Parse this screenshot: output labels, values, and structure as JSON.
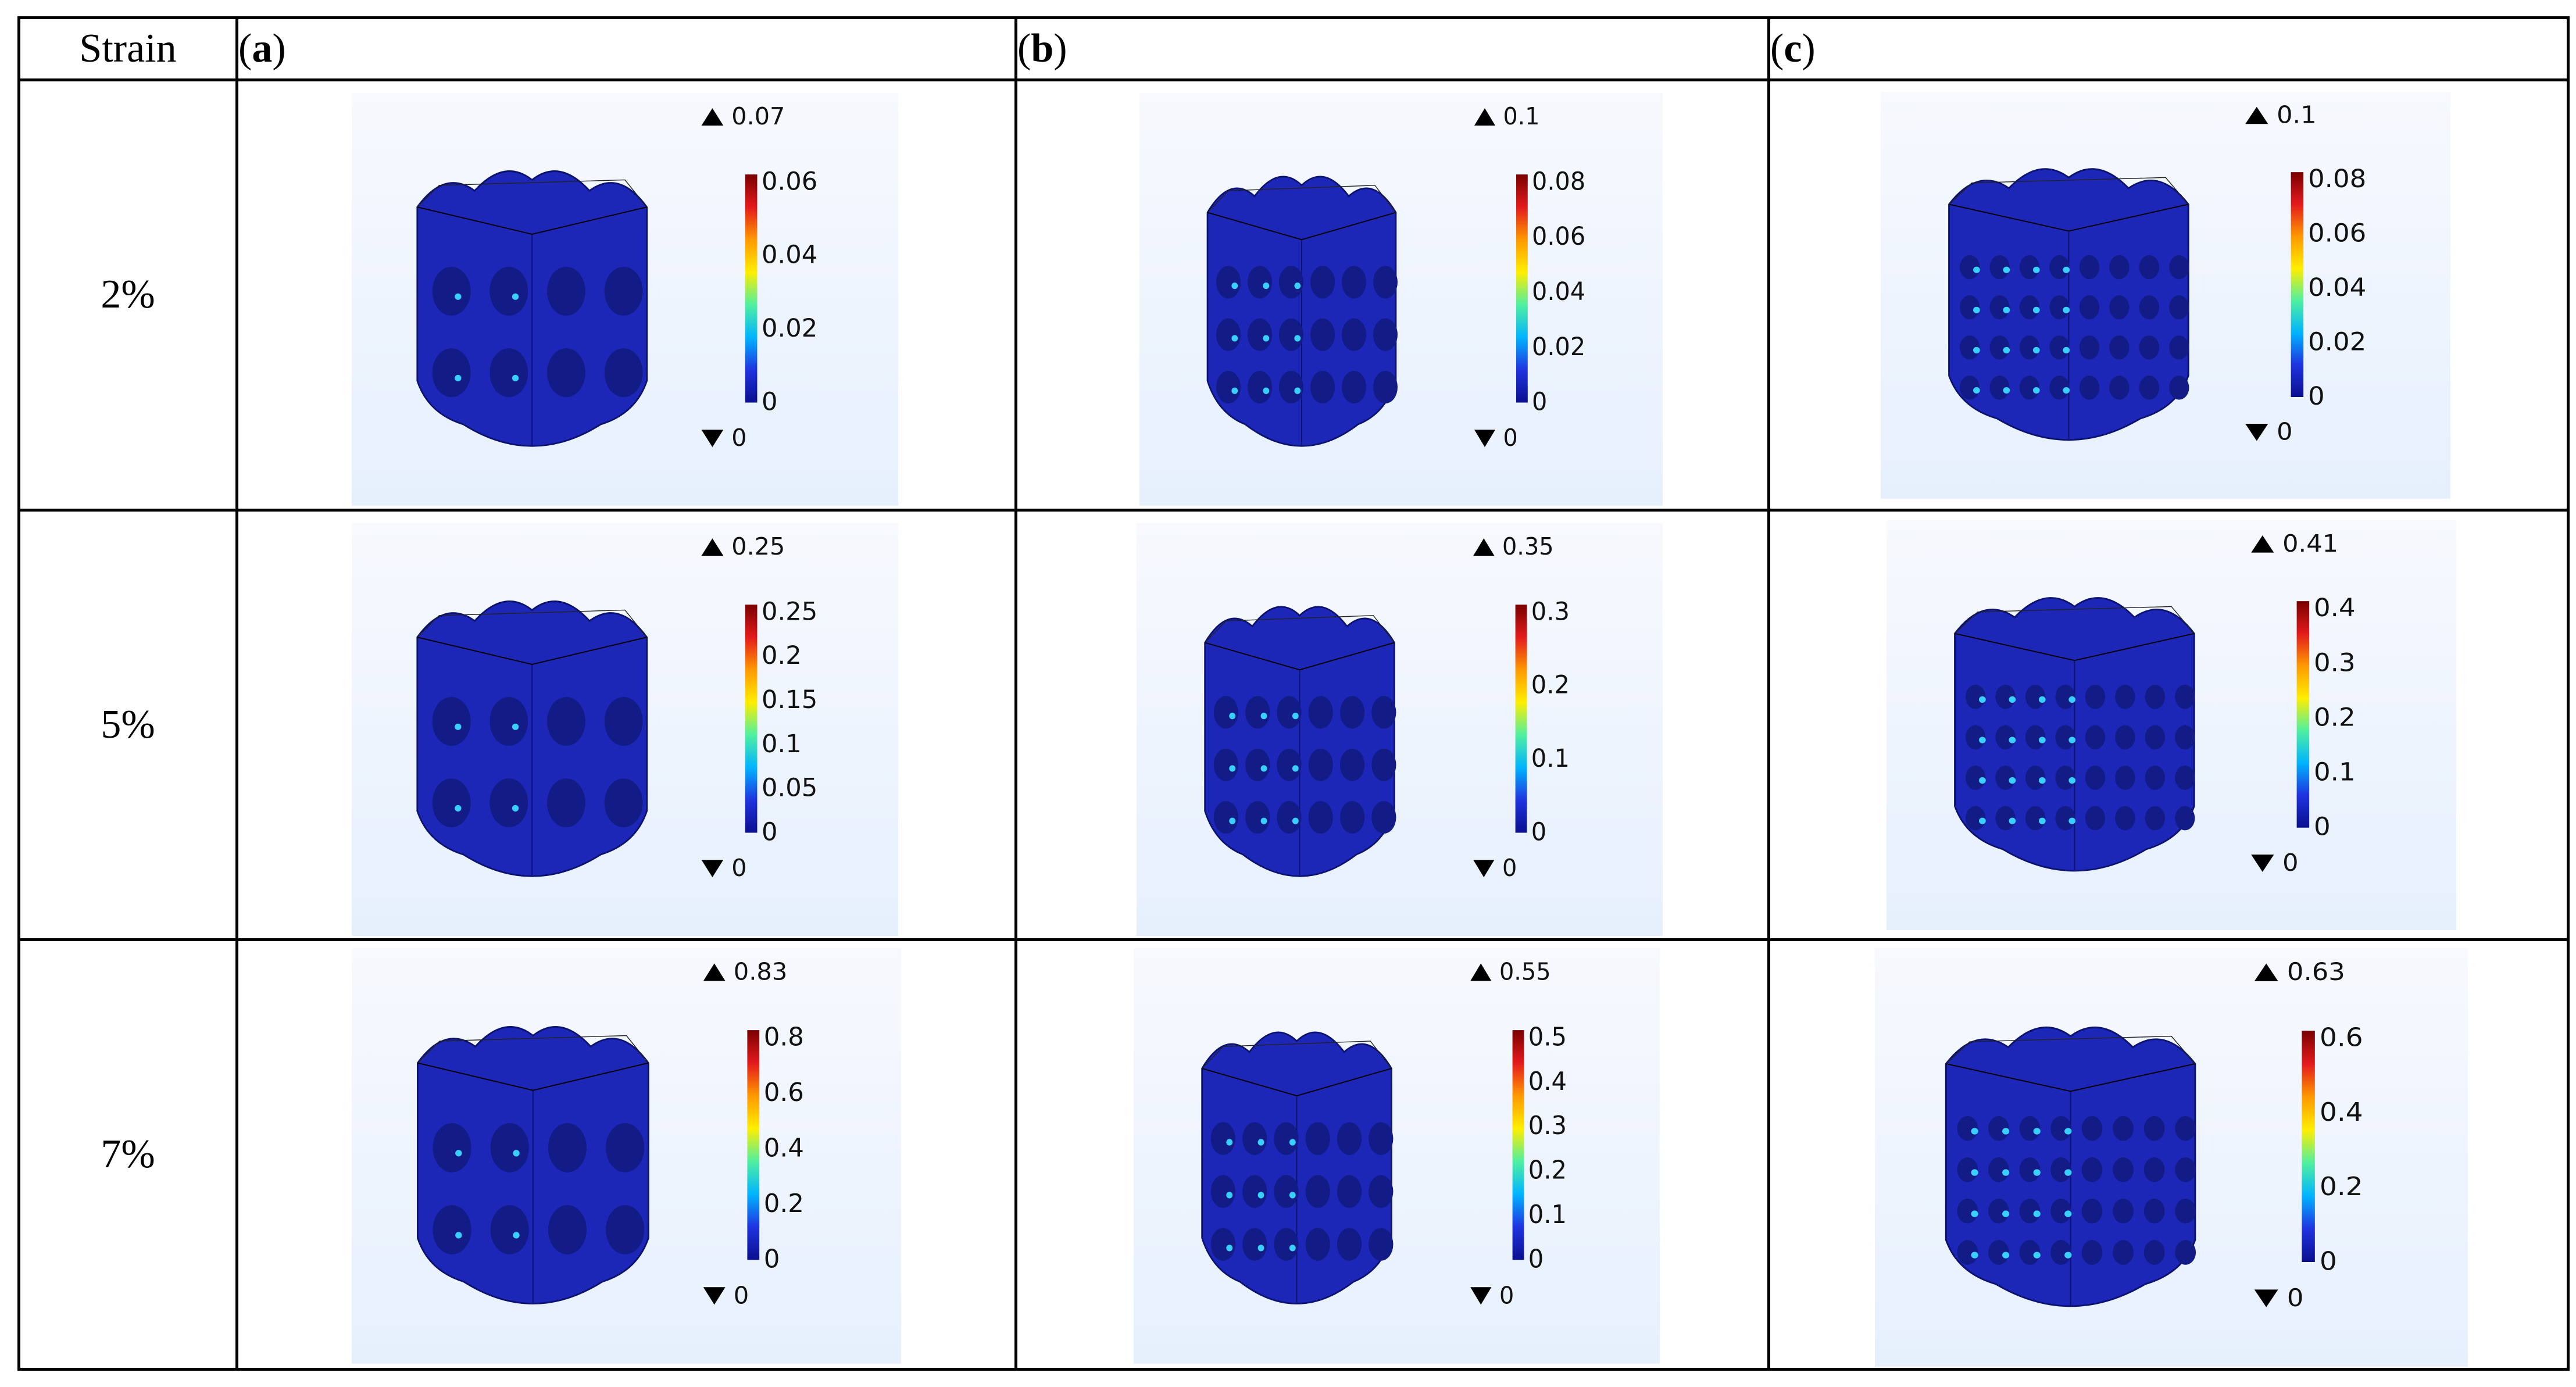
{
  "header": {
    "strain": "Strain",
    "columns": [
      "a",
      "b",
      "c"
    ]
  },
  "rows": [
    {
      "strain": "2%",
      "panels": [
        {
          "max": "0.07",
          "min": "0",
          "ticks": [
            "0.06",
            "0.04",
            "0.02",
            "0"
          ]
        },
        {
          "max": "0.1",
          "min": "0",
          "ticks": [
            "0.08",
            "0.06",
            "0.04",
            "0.02",
            "0"
          ]
        },
        {
          "max": "0.1",
          "min": "0",
          "ticks": [
            "0.08",
            "0.06",
            "0.04",
            "0.02",
            "0"
          ]
        }
      ]
    },
    {
      "strain": "5%",
      "panels": [
        {
          "max": "0.25",
          "min": "0",
          "ticks": [
            "0.25",
            "0.2",
            "0.15",
            "0.1",
            "0.05",
            "0"
          ]
        },
        {
          "max": "0.35",
          "min": "0",
          "ticks": [
            "0.3",
            "0.2",
            "0.1",
            "0"
          ]
        },
        {
          "max": "0.41",
          "min": "0",
          "ticks": [
            "0.4",
            "0.3",
            "0.2",
            "0.1",
            "0"
          ]
        }
      ]
    },
    {
      "strain": "7%",
      "panels": [
        {
          "max": "0.83",
          "min": "0",
          "ticks": [
            "0.8",
            "0.6",
            "0.4",
            "0.2",
            "0"
          ]
        },
        {
          "max": "0.55",
          "min": "0",
          "ticks": [
            "0.5",
            "0.4",
            "0.3",
            "0.2",
            "0.1",
            "0"
          ]
        },
        {
          "max": "0.63",
          "min": "0",
          "ticks": [
            "0.6",
            "0.4",
            "0.2",
            "0"
          ]
        }
      ]
    }
  ],
  "colors": {
    "colorbar": [
      "#7a0000",
      "#e31a1c",
      "#ff9900",
      "#ffee00",
      "#4ff0a0",
      "#00b4ff",
      "#1f33e0",
      "#0a0f8f"
    ],
    "structure": "#1c27b8",
    "structure_dark": "#121b86",
    "hotspot": "#39d0ff"
  }
}
